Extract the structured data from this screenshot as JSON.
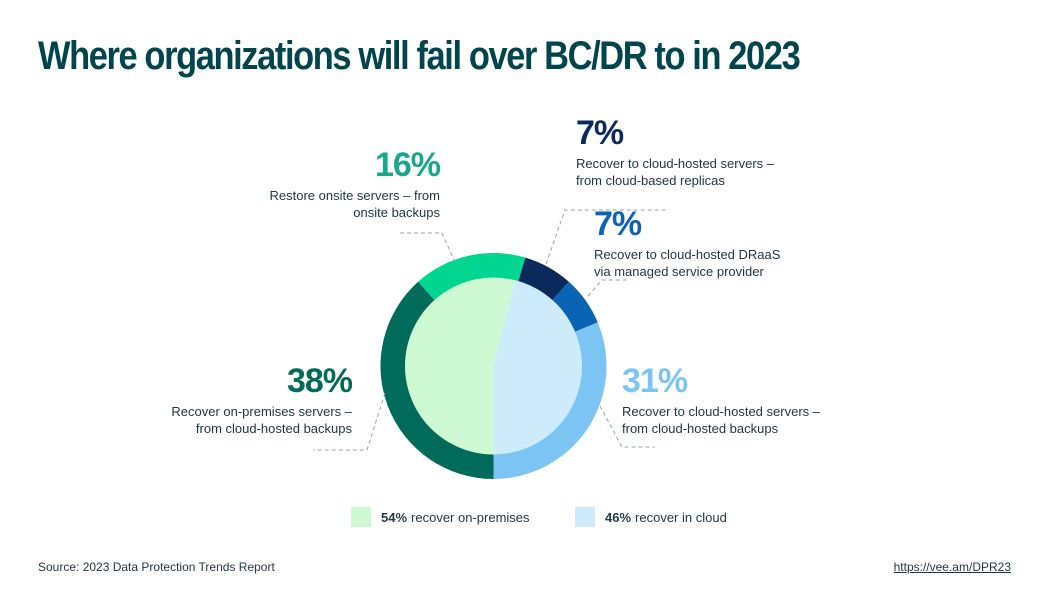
{
  "title": "Where organizations will fail over BC/DR to in 2023",
  "chart_data": {
    "type": "pie",
    "subtype": "donut-with-inner-pie",
    "title": "Where organizations will fail over BC/DR to in 2023",
    "outer_ring": [
      {
        "label": "Recover on-premises servers – from cloud-hosted backups",
        "value": 38,
        "color": "#006b5a",
        "group": "on-premises"
      },
      {
        "label": "Restore onsite servers – from onsite backups",
        "value": 16,
        "color": "#00d68f",
        "group": "on-premises"
      },
      {
        "label": "Recover to cloud-hosted servers – from cloud-based replicas",
        "value": 7,
        "color": "#0b2a5c",
        "group": "cloud"
      },
      {
        "label": "Recover to cloud-hosted DRaaS via managed service provider",
        "value": 7,
        "color": "#0a64b4",
        "group": "cloud"
      },
      {
        "label": "Recover to cloud-hosted servers – from cloud-hosted backups",
        "value": 31,
        "color": "#7cc4f4",
        "group": "cloud"
      }
    ],
    "inner_pie": [
      {
        "label": "recover on-premises",
        "value": 54,
        "color": "#cdfad2"
      },
      {
        "label": "recover in cloud",
        "value": 46,
        "color": "#cdebfa"
      }
    ],
    "legend_position": "bottom"
  },
  "labels": {
    "onsite": {
      "pct": "16%",
      "line1": "Restore onsite servers – from",
      "line2": "onsite backups",
      "color": "#17a88a"
    },
    "replicas": {
      "pct": "7%",
      "line1": "Recover to cloud-hosted servers –",
      "line2": "from cloud-based replicas",
      "color": "#0b2a5c"
    },
    "draas": {
      "pct": "7%",
      "line1": "Recover to cloud-hosted DRaaS",
      "line2": "via managed service provider",
      "color": "#0a64b4"
    },
    "onprem": {
      "pct": "38%",
      "line1": "Recover on-premises servers –",
      "line2": "from cloud-hosted backups",
      "color": "#006b5a"
    },
    "cloud_backups": {
      "pct": "31%",
      "line1": "Recover to cloud-hosted servers –",
      "line2": "from cloud-hosted backups",
      "color": "#7cc4f4"
    }
  },
  "legend": [
    {
      "pct": "54%",
      "text": "recover on-premises",
      "color": "#cdfad2"
    },
    {
      "pct": "46%",
      "text": "recover in cloud",
      "color": "#cdebfa"
    }
  ],
  "footer": {
    "source": "Source: 2023 Data Protection Trends Report",
    "link": "https://vee.am/DPR23"
  }
}
